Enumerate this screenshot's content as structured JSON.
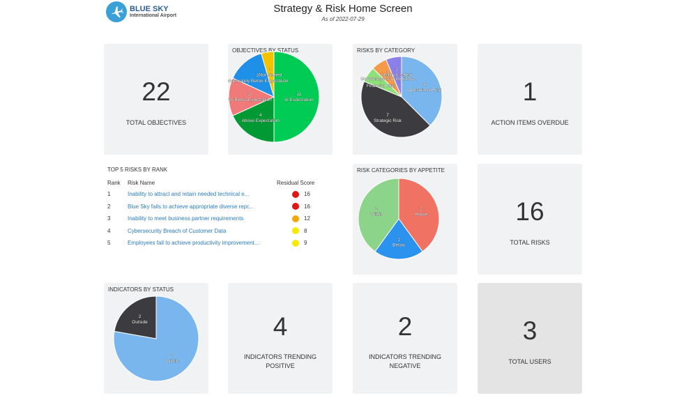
{
  "header": {
    "logo_name": "BLUE SKY",
    "logo_sub": "International Airport",
    "title": "Strategy & Risk Home Screen",
    "as_of": "As of 2022-07-29",
    "logo_icon": "airplane-icon"
  },
  "kpis": {
    "total_objectives": {
      "value": "22",
      "label": "TOTAL OBJECTIVES"
    },
    "action_items_overdue": {
      "value": "1",
      "label": "ACTION ITEMS OVERDUE"
    },
    "total_risks": {
      "value": "16",
      "label": "TOTAL RISKS"
    },
    "indicators_positive": {
      "value": "4",
      "label_1": "INDICATORS TRENDING",
      "label_2": "POSITIVE"
    },
    "indicators_negative": {
      "value": "2",
      "label_1": "INDICATORS TRENDING",
      "label_2": "NEGATIVE"
    },
    "total_users": {
      "value": "3",
      "label": "TOTAL USERS"
    }
  },
  "top_risks": {
    "title": "TOP 5 RISKS BY RANK",
    "columns": {
      "rank": "Rank",
      "name": "Risk Name",
      "score": "Residual Score"
    },
    "rows": [
      {
        "rank": "1",
        "name": "Inability to attract and retain needed technical e...",
        "score": "16",
        "color": "#e01414"
      },
      {
        "rank": "2",
        "name": "Blue Sky fails to achieve appropriate diverse repr...",
        "score": "16",
        "color": "#e01414"
      },
      {
        "rank": "3",
        "name": "Inability to meet business partner requirements",
        "score": "12",
        "color": "#f5a800"
      },
      {
        "rank": "4",
        "name": "Cybersecurity Breach of Customer Data",
        "score": "8",
        "color": "#f5ea00"
      },
      {
        "rank": "5",
        "name": "Employees fail to achieve productivity improvement...",
        "score": "9",
        "color": "#f5ea00"
      }
    ]
  },
  "chart_data": [
    {
      "title": "OBJECTIVES BY STATUS",
      "type": "pie",
      "slices": [
        {
          "label": "At Expectation",
          "value": 11,
          "color": "#00cc55"
        },
        {
          "label": "Above Expectation",
          "value": 4,
          "color": "#009933"
        },
        {
          "label": "Far Below Expectation",
          "value": 3,
          "color": "#f07a7a"
        },
        {
          "label": "Moderately Below Expectation",
          "value": 3,
          "color": "#1e90e8"
        },
        {
          "label": "Not Started",
          "value": 1,
          "color": "#f5c200"
        }
      ]
    },
    {
      "title": "RISKS BY CATEGORY",
      "type": "pie",
      "slices": [
        {
          "label": "Operational Risk",
          "value": 6,
          "color": "#7ab6ee"
        },
        {
          "label": "Strategic Risk",
          "value": 7,
          "color": "#3b3b40"
        },
        {
          "label": "Financial Risk",
          "value": 1,
          "color": "#8ee07a"
        },
        {
          "label": "Governance & Compliance",
          "value": 1,
          "color": "#f49a4a"
        },
        {
          "label": "Health & Safety",
          "value": 1,
          "color": "#8b80e8"
        }
      ]
    },
    {
      "title": "RISK CATEGORIES BY APPETITE",
      "type": "pie",
      "slices": [
        {
          "label": "Above",
          "value": 2,
          "color": "#f07262"
        },
        {
          "label": "Below",
          "value": 1,
          "color": "#2b92ee"
        },
        {
          "label": "Within",
          "value": 2,
          "color": "#8cd48a"
        }
      ]
    },
    {
      "title": "INDICATORS BY STATUS",
      "type": "pie",
      "slices": [
        {
          "label": "Within",
          "value": 7,
          "color": "#7ab6ee"
        },
        {
          "label": "Outside",
          "value": 2,
          "color": "#3b3b40"
        }
      ]
    }
  ]
}
